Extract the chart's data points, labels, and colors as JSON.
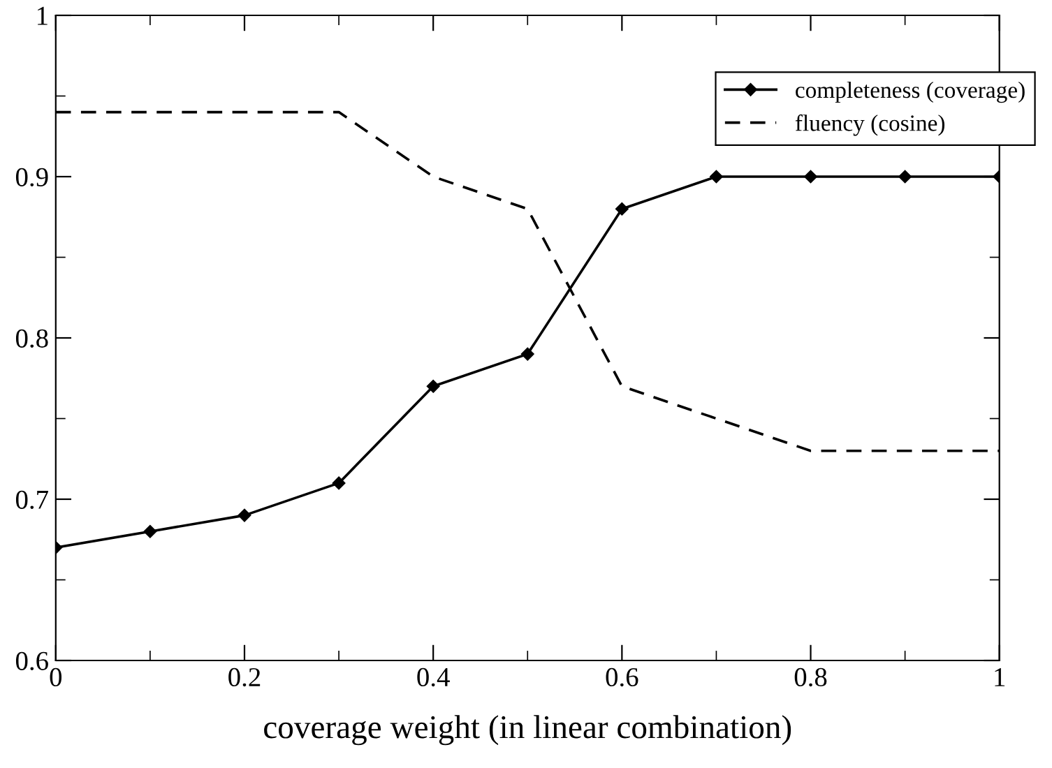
{
  "chart_data": {
    "type": "line",
    "xlabel": "coverage weight (in linear combination)",
    "x": [
      0,
      0.1,
      0.2,
      0.3,
      0.4,
      0.5,
      0.6,
      0.7,
      0.8,
      0.9,
      1
    ],
    "series": [
      {
        "name": "completeness (coverage)",
        "color": "#000000",
        "marker": "diamond",
        "line_style": "solid",
        "values": [
          0.67,
          0.68,
          0.69,
          0.71,
          0.77,
          0.79,
          0.88,
          0.9,
          0.9,
          0.9,
          0.9
        ]
      },
      {
        "name": "fluency (cosine)",
        "color": "#000000",
        "marker": "none",
        "line_style": "dashed",
        "values": [
          0.94,
          0.94,
          0.94,
          0.94,
          0.9,
          0.88,
          0.77,
          0.75,
          0.73,
          0.73,
          0.73
        ]
      }
    ],
    "xlim": [
      0,
      1
    ],
    "ylim": [
      0.6,
      1
    ],
    "xticks": [
      0,
      0.2,
      0.4,
      0.6,
      0.8,
      1
    ],
    "yticks": [
      0.6,
      0.7,
      0.8,
      0.9,
      1
    ],
    "grid": false,
    "legend": "top right"
  }
}
